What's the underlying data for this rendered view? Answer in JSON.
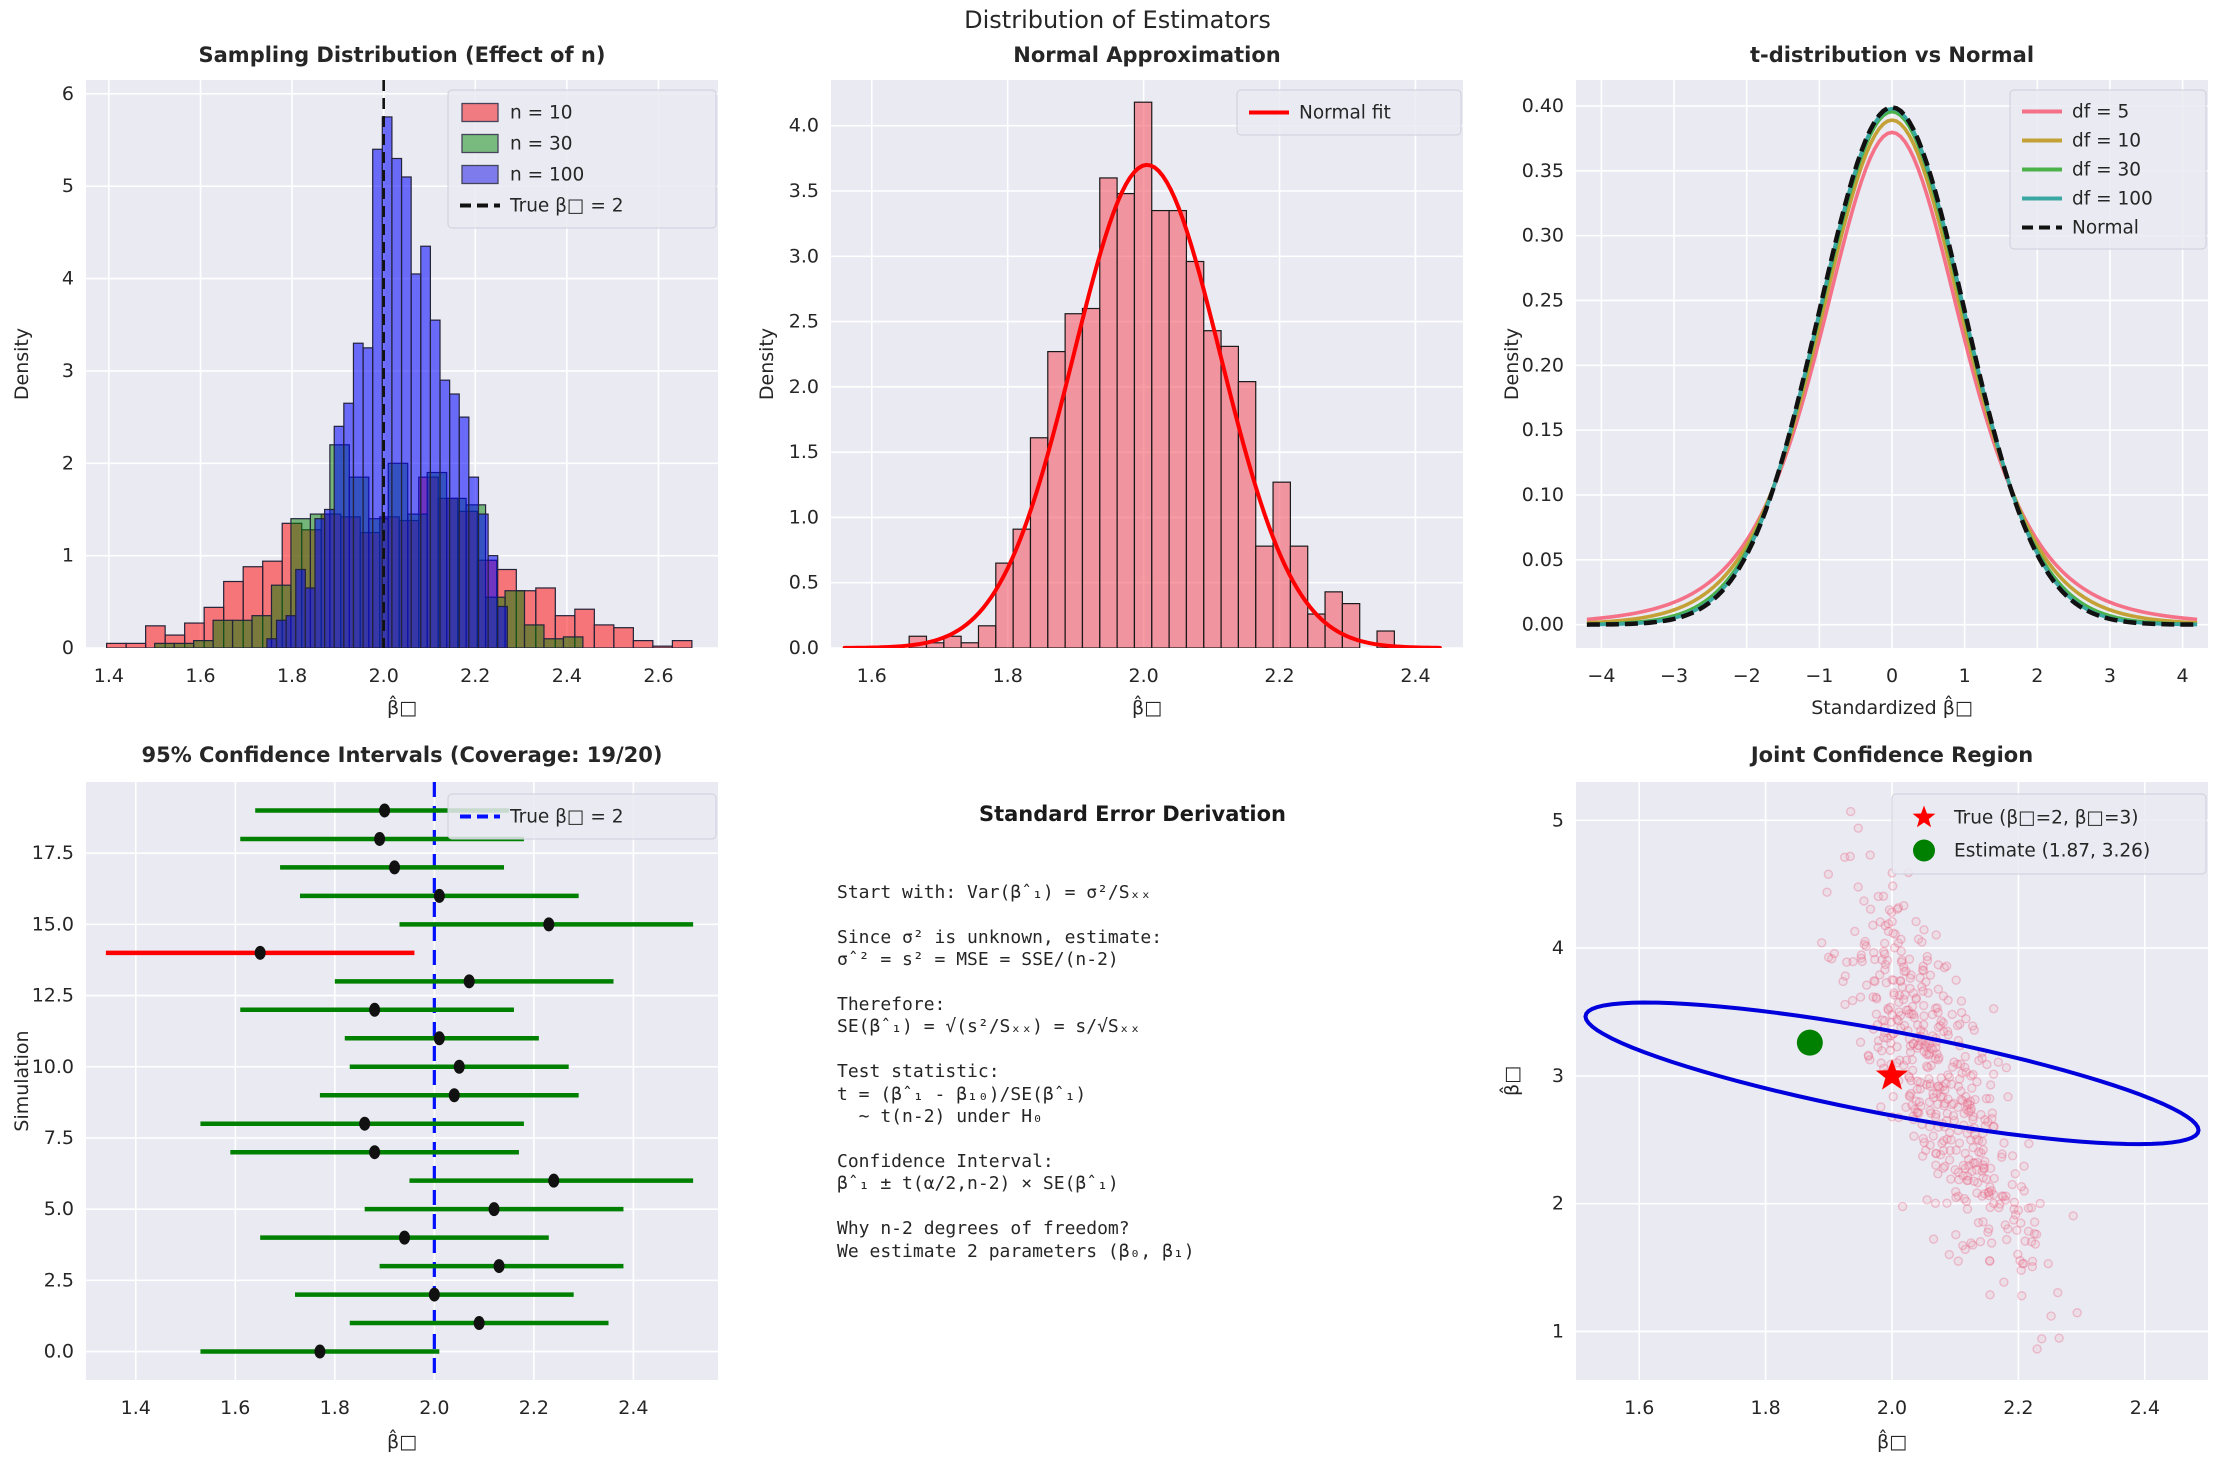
{
  "figure": {
    "title": "Distribution of Estimators",
    "bg": "#ffffff",
    "axes_bg": "#eaeaf2",
    "grid_color": "#ffffff",
    "text_color": "#262626"
  },
  "chart_data": [
    {
      "id": "sampling",
      "type": "hist_multi",
      "title": "Sampling Distribution (Effect of n)",
      "xlabel": "β̂□",
      "ylabel": "Density",
      "xlim": [
        1.35,
        2.73
      ],
      "ylim": [
        0,
        6.15
      ],
      "xticks": [
        1.4,
        1.6,
        1.8,
        2.0,
        2.2,
        2.4,
        2.6
      ],
      "xtick_labels": [
        "1.4",
        "1.6",
        "1.8",
        "2.0",
        "2.2",
        "2.4",
        "2.6"
      ],
      "yticks": [
        0,
        1,
        2,
        3,
        4,
        5,
        6
      ],
      "ytick_labels": [
        "0",
        "1",
        "2",
        "3",
        "4",
        "5",
        "6"
      ],
      "series": [
        {
          "name": "n = 10",
          "fill": "rgba(255,0,0,0.5)",
          "edge": "#23233a",
          "start": 1.395,
          "binw": 0.0426,
          "heights": [
            0.05,
            0.05,
            0.24,
            0.14,
            0.27,
            0.44,
            0.72,
            0.88,
            0.94,
            1.35,
            1.28,
            1.45,
            1.42,
            1.25,
            1.42,
            1.38,
            1.85,
            1.62,
            1.48,
            0.95,
            0.85,
            0.62,
            0.65,
            0.35,
            0.42,
            0.25,
            0.22,
            0.08,
            0.02,
            0.08
          ]
        },
        {
          "name": "n = 30",
          "fill": "rgba(0,128,0,0.5)",
          "edge": "#23233a",
          "start": 1.5,
          "binw": 0.0425,
          "heights": [
            0.05,
            0.05,
            0.08,
            0.3,
            0.3,
            0.35,
            0.68,
            1.4,
            1.45,
            2.2,
            1.85,
            1.4,
            2.0,
            1.45,
            1.9,
            1.62,
            1.55,
            0.55,
            0.62,
            0.25,
            0.1,
            0.12
          ]
        },
        {
          "name": "n = 100",
          "fill": "rgba(0,0,255,0.55)",
          "edge": "#23233a",
          "start": 1.745,
          "binw": 0.021,
          "heights": [
            0.1,
            0.3,
            0.35,
            0.85,
            0.65,
            1.4,
            1.5,
            2.4,
            2.65,
            3.3,
            3.25,
            5.4,
            5.75,
            5.3,
            5.1,
            4.05,
            4.35,
            3.55,
            2.9,
            2.75,
            2.5,
            1.85,
            1.45,
            1.0,
            0.45
          ]
        }
      ],
      "vline": {
        "x": 2.0,
        "color": "#111111",
        "label": "True β□ = 2"
      }
    },
    {
      "id": "normal-approx",
      "type": "hist_fit",
      "title": "Normal Approximation",
      "xlabel": "β̂□",
      "ylabel": "Density",
      "xlim": [
        1.54,
        2.47
      ],
      "ylim": [
        0,
        4.35
      ],
      "xticks": [
        1.6,
        1.8,
        2.0,
        2.2,
        2.4
      ],
      "xtick_labels": [
        "1.6",
        "1.8",
        "2.0",
        "2.2",
        "2.4"
      ],
      "yticks": [
        0,
        0.5,
        1.0,
        1.5,
        2.0,
        2.5,
        3.0,
        3.5,
        4.0
      ],
      "ytick_labels": [
        "0.0",
        "0.5",
        "1.0",
        "1.5",
        "2.0",
        "2.5",
        "3.0",
        "3.5",
        "4.0"
      ],
      "hist": {
        "fill": "rgba(244,96,110,0.62)",
        "edge": "#1a1a1a",
        "start": 1.655,
        "binw": 0.0255,
        "heights": [
          0.09,
          0.04,
          0.09,
          0.04,
          0.17,
          0.65,
          0.91,
          1.61,
          2.27,
          2.56,
          2.6,
          3.6,
          3.48,
          4.18,
          3.35,
          3.35,
          2.96,
          2.43,
          2.31,
          2.04,
          0.78,
          1.27,
          0.78,
          0.26,
          0.43,
          0.34,
          0.0,
          0.13
        ]
      },
      "fit": {
        "label": "Normal fit",
        "color": "#ff0000",
        "mean": 2.005,
        "sd": 0.108,
        "peak": 3.7,
        "x_range": [
          1.56,
          2.44
        ]
      }
    },
    {
      "id": "t-vs-normal",
      "type": "tcurves",
      "title": "t-distribution vs Normal",
      "xlabel": "Standardized β̂□",
      "ylabel": "Density",
      "xlim": [
        -4.35,
        4.35
      ],
      "ylim": [
        -0.018,
        0.42
      ],
      "xticks": [
        -4,
        -3,
        -2,
        -1,
        0,
        1,
        2,
        3,
        4
      ],
      "xtick_labels": [
        "−4",
        "−3",
        "−2",
        "−1",
        "0",
        "1",
        "2",
        "3",
        "4"
      ],
      "yticks": [
        0,
        0.05,
        0.1,
        0.15,
        0.2,
        0.25,
        0.3,
        0.35,
        0.4
      ],
      "ytick_labels": [
        "0.00",
        "0.05",
        "0.10",
        "0.15",
        "0.20",
        "0.25",
        "0.30",
        "0.35",
        "0.40"
      ],
      "curves": [
        {
          "label": "df = 5",
          "df": 5,
          "peak": 0.3796,
          "color": "#f47188",
          "dashed": false
        },
        {
          "label": "df = 10",
          "df": 10,
          "peak": 0.3891,
          "color": "#c3a136",
          "dashed": false
        },
        {
          "label": "df = 30",
          "df": 30,
          "peak": 0.3956,
          "color": "#4bb24a",
          "dashed": false
        },
        {
          "label": "df = 100",
          "df": 100,
          "peak": 0.3979,
          "color": "#3aa8a2",
          "dashed": false
        },
        {
          "label": "Normal",
          "df": 0,
          "peak": 0.39894,
          "color": "#111111",
          "dashed": true
        }
      ]
    },
    {
      "id": "confidence-intervals",
      "type": "intervals",
      "title": "95% Confidence Intervals (Coverage: 19/20)",
      "xlabel": "β̂□",
      "ylabel": "Simulation",
      "xlim": [
        1.3,
        2.57
      ],
      "ylim": [
        -1,
        20
      ],
      "xticks": [
        1.4,
        1.6,
        1.8,
        2.0,
        2.2,
        2.4
      ],
      "xtick_labels": [
        "1.4",
        "1.6",
        "1.8",
        "2.0",
        "2.2",
        "2.4"
      ],
      "yticks": [
        0,
        2.5,
        5,
        7.5,
        10,
        12.5,
        15,
        17.5
      ],
      "ytick_labels": [
        "0.0",
        "2.5",
        "5.0",
        "7.5",
        "10.0",
        "12.5",
        "15.0",
        "17.5"
      ],
      "cover_color": "#008000",
      "miss_color": "#ff0000",
      "point_color": "#111111",
      "intervals": [
        {
          "sim": 0,
          "lo": 1.53,
          "hi": 2.01,
          "pt": 1.77,
          "covered": true
        },
        {
          "sim": 1,
          "lo": 1.83,
          "hi": 2.35,
          "pt": 2.09,
          "covered": true
        },
        {
          "sim": 2,
          "lo": 1.72,
          "hi": 2.28,
          "pt": 2.0,
          "covered": true
        },
        {
          "sim": 3,
          "lo": 1.89,
          "hi": 2.38,
          "pt": 2.13,
          "covered": true
        },
        {
          "sim": 4,
          "lo": 1.65,
          "hi": 2.23,
          "pt": 1.94,
          "covered": true
        },
        {
          "sim": 5,
          "lo": 1.86,
          "hi": 2.38,
          "pt": 2.12,
          "covered": true
        },
        {
          "sim": 6,
          "lo": 1.95,
          "hi": 2.52,
          "pt": 2.24,
          "covered": true
        },
        {
          "sim": 7,
          "lo": 1.59,
          "hi": 2.17,
          "pt": 1.88,
          "covered": true
        },
        {
          "sim": 8,
          "lo": 1.53,
          "hi": 2.18,
          "pt": 1.86,
          "covered": true
        },
        {
          "sim": 9,
          "lo": 1.77,
          "hi": 2.29,
          "pt": 2.04,
          "covered": true
        },
        {
          "sim": 10,
          "lo": 1.83,
          "hi": 2.27,
          "pt": 2.05,
          "covered": true
        },
        {
          "sim": 11,
          "lo": 1.82,
          "hi": 2.21,
          "pt": 2.01,
          "covered": true
        },
        {
          "sim": 12,
          "lo": 1.61,
          "hi": 2.16,
          "pt": 1.88,
          "covered": true
        },
        {
          "sim": 13,
          "lo": 1.8,
          "hi": 2.36,
          "pt": 2.07,
          "covered": true
        },
        {
          "sim": 14,
          "lo": 1.34,
          "hi": 1.96,
          "pt": 1.65,
          "covered": false
        },
        {
          "sim": 15,
          "lo": 1.93,
          "hi": 2.52,
          "pt": 2.23,
          "covered": true
        },
        {
          "sim": 16,
          "lo": 1.73,
          "hi": 2.29,
          "pt": 2.01,
          "covered": true
        },
        {
          "sim": 17,
          "lo": 1.69,
          "hi": 2.14,
          "pt": 1.92,
          "covered": true
        },
        {
          "sim": 18,
          "lo": 1.61,
          "hi": 2.18,
          "pt": 1.89,
          "covered": true
        },
        {
          "sim": 19,
          "lo": 1.64,
          "hi": 2.15,
          "pt": 1.9,
          "covered": true
        }
      ],
      "vline": {
        "x": 2.0,
        "color": "#0010ff",
        "label": "True β□ = 2"
      }
    },
    {
      "id": "joint-region",
      "type": "joint",
      "title": "Joint Confidence Region",
      "xlabel": "β̂□",
      "ylabel": "β̂□",
      "xlim": [
        1.5,
        2.5
      ],
      "ylim": [
        0.62,
        5.3
      ],
      "xticks": [
        1.6,
        1.8,
        2.0,
        2.2,
        2.4
      ],
      "xtick_labels": [
        "1.6",
        "1.8",
        "2.0",
        "2.2",
        "2.4"
      ],
      "yticks": [
        1,
        2,
        3,
        4,
        5
      ],
      "ytick_labels": [
        "1",
        "2",
        "3",
        "4",
        "5"
      ],
      "scatter": {
        "n": 500,
        "seed": 42,
        "cx": 2.07,
        "cy": 3.0,
        "sx": 0.08,
        "slope": -8.5,
        "noise_y": 0.45,
        "color": "rgba(231,104,134,0.35)",
        "fill": "rgba(242,150,170,0.14)"
      },
      "ellipse": {
        "cx": 2.0,
        "cy": 3.02,
        "ux": 0.485,
        "uy": -0.445,
        "vx": 0,
        "vy": 0.33,
        "color": "#0000dd"
      },
      "true_point": {
        "x": 2.0,
        "y": 3.0,
        "color": "#ff0000",
        "label": "True (β□=2, β□=3)"
      },
      "estimate_point": {
        "x": 1.87,
        "y": 3.26,
        "color": "#008000",
        "label": "Estimate (1.87, 3.26)"
      }
    }
  ],
  "derivation": {
    "title": "Standard Error Derivation",
    "lines": [
      "Start with: Var(βˆ₁) = σ²/Sₓₓ",
      "",
      "Since σ² is unknown, estimate:",
      "σˆ² = s² = MSE = SSE/(n-2)",
      "",
      "Therefore:",
      "SE(βˆ₁) = √(s²/Sₓₓ) = s/√Sₓₓ",
      "",
      "Test statistic:",
      "t = (βˆ₁ - β₁₀)/SE(βˆ₁)",
      "  ~ t(n-2) under H₀",
      "",
      "Confidence Interval:",
      "βˆ₁ ± t(α/2,n-2) × SE(βˆ₁)",
      "",
      "Why n-2 degrees of freedom?",
      "We estimate 2 parameters (β₀, β₁)"
    ]
  }
}
